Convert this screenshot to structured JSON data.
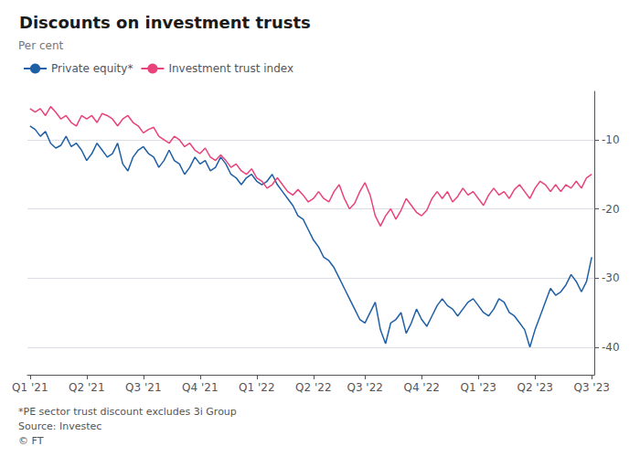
{
  "chart_data": {
    "type": "line",
    "title": "Discounts on investment trusts",
    "y_label": "Per cent",
    "annotations": [
      "*PE sector trust discount excludes 3i Group",
      "Source: Investec",
      "© FT"
    ],
    "categories": [
      "Q1 '21",
      null,
      null,
      null,
      null,
      null,
      null,
      null,
      null,
      null,
      null,
      "Q2 '21",
      null,
      null,
      null,
      null,
      null,
      null,
      null,
      null,
      null,
      null,
      "Q3 '21",
      null,
      null,
      null,
      null,
      null,
      null,
      null,
      null,
      null,
      null,
      "Q4 '21",
      null,
      null,
      null,
      null,
      null,
      null,
      null,
      null,
      null,
      null,
      "Q1 '22",
      null,
      null,
      null,
      null,
      null,
      null,
      null,
      null,
      null,
      null,
      "Q2 '22",
      null,
      null,
      null,
      null,
      null,
      null,
      null,
      null,
      null,
      "Q3 '22",
      null,
      null,
      null,
      null,
      null,
      null,
      null,
      null,
      null,
      null,
      "Q4 '22",
      null,
      null,
      null,
      null,
      null,
      null,
      null,
      null,
      null,
      null,
      "Q1 '23",
      null,
      null,
      null,
      null,
      null,
      null,
      null,
      null,
      null,
      null,
      "Q2 '23",
      null,
      null,
      null,
      null,
      null,
      null,
      null,
      null,
      null,
      null,
      "Q3 '23"
    ],
    "series": [
      {
        "name": "Private equity*",
        "color": "#1f5fa6",
        "values": [
          -8.0,
          -8.5,
          -9.5,
          -8.8,
          -10.5,
          -11.2,
          -10.8,
          -9.5,
          -11.0,
          -10.5,
          -11.5,
          -13.0,
          -12.0,
          -10.5,
          -11.5,
          -12.5,
          -12.0,
          -10.5,
          -13.5,
          -14.5,
          -12.5,
          -11.5,
          -11.0,
          -12.0,
          -12.5,
          -14.0,
          -13.0,
          -11.5,
          -13.0,
          -13.5,
          -15.0,
          -14.0,
          -12.5,
          -13.5,
          -13.0,
          -14.5,
          -14.0,
          -12.5,
          -13.5,
          -15.0,
          -15.5,
          -16.5,
          -15.5,
          -15.0,
          -16.0,
          -16.5,
          -16.0,
          -15.0,
          -16.5,
          -17.5,
          -18.5,
          -19.5,
          -21.0,
          -21.5,
          -23.0,
          -24.5,
          -25.5,
          -27.0,
          -27.5,
          -28.5,
          -30.0,
          -31.5,
          -33.0,
          -34.5,
          -36.0,
          -36.5,
          -35.0,
          -33.5,
          -37.5,
          -39.5,
          -36.5,
          -36.0,
          -35.0,
          -38.0,
          -36.5,
          -34.5,
          -36.0,
          -37.0,
          -35.5,
          -34.0,
          -33.0,
          -34.0,
          -34.5,
          -35.5,
          -34.5,
          -33.5,
          -33.0,
          -34.0,
          -35.0,
          -35.5,
          -34.5,
          -33.0,
          -33.5,
          -35.0,
          -35.5,
          -36.5,
          -37.5,
          -40.0,
          -37.5,
          -35.5,
          -33.5,
          -31.5,
          -32.5,
          -32.0,
          -31.0,
          -29.5,
          -30.5,
          -32.0,
          -30.5,
          -27.0
        ]
      },
      {
        "name": "Investment trust index",
        "color": "#e8437a",
        "values": [
          -5.5,
          -6.0,
          -5.5,
          -6.5,
          -5.2,
          -6.0,
          -7.0,
          -6.5,
          -7.5,
          -8.0,
          -6.5,
          -7.0,
          -6.5,
          -7.5,
          -6.2,
          -6.5,
          -7.0,
          -8.0,
          -7.0,
          -6.5,
          -7.5,
          -8.0,
          -9.0,
          -8.5,
          -8.2,
          -9.5,
          -10.0,
          -10.5,
          -9.5,
          -10.0,
          -11.0,
          -10.5,
          -11.5,
          -12.0,
          -11.2,
          -12.5,
          -13.0,
          -12.2,
          -13.0,
          -14.0,
          -13.5,
          -14.5,
          -15.0,
          -14.2,
          -15.5,
          -16.0,
          -17.0,
          -16.5,
          -15.5,
          -16.5,
          -17.5,
          -18.0,
          -17.2,
          -18.0,
          -19.0,
          -18.5,
          -17.5,
          -18.5,
          -19.0,
          -17.5,
          -16.5,
          -18.5,
          -20.0,
          -19.2,
          -17.5,
          -16.2,
          -18.0,
          -21.0,
          -22.5,
          -21.0,
          -20.0,
          -21.5,
          -20.2,
          -18.5,
          -19.5,
          -20.5,
          -21.0,
          -20.2,
          -18.5,
          -17.5,
          -18.5,
          -17.5,
          -19.0,
          -18.2,
          -17.0,
          -18.0,
          -17.5,
          -18.5,
          -19.5,
          -18.0,
          -17.0,
          -18.0,
          -17.5,
          -18.5,
          -17.2,
          -16.5,
          -17.5,
          -18.5,
          -17.0,
          -16.0,
          -16.5,
          -17.5,
          -16.5,
          -17.5,
          -16.5,
          -17.0,
          -16.0,
          -17.0,
          -15.5,
          -15.0
        ]
      }
    ],
    "ylim": [
      -44,
      -3
    ],
    "yticks": [
      -40,
      -30,
      -20,
      -10
    ],
    "grid": true,
    "legend": "top-left"
  }
}
